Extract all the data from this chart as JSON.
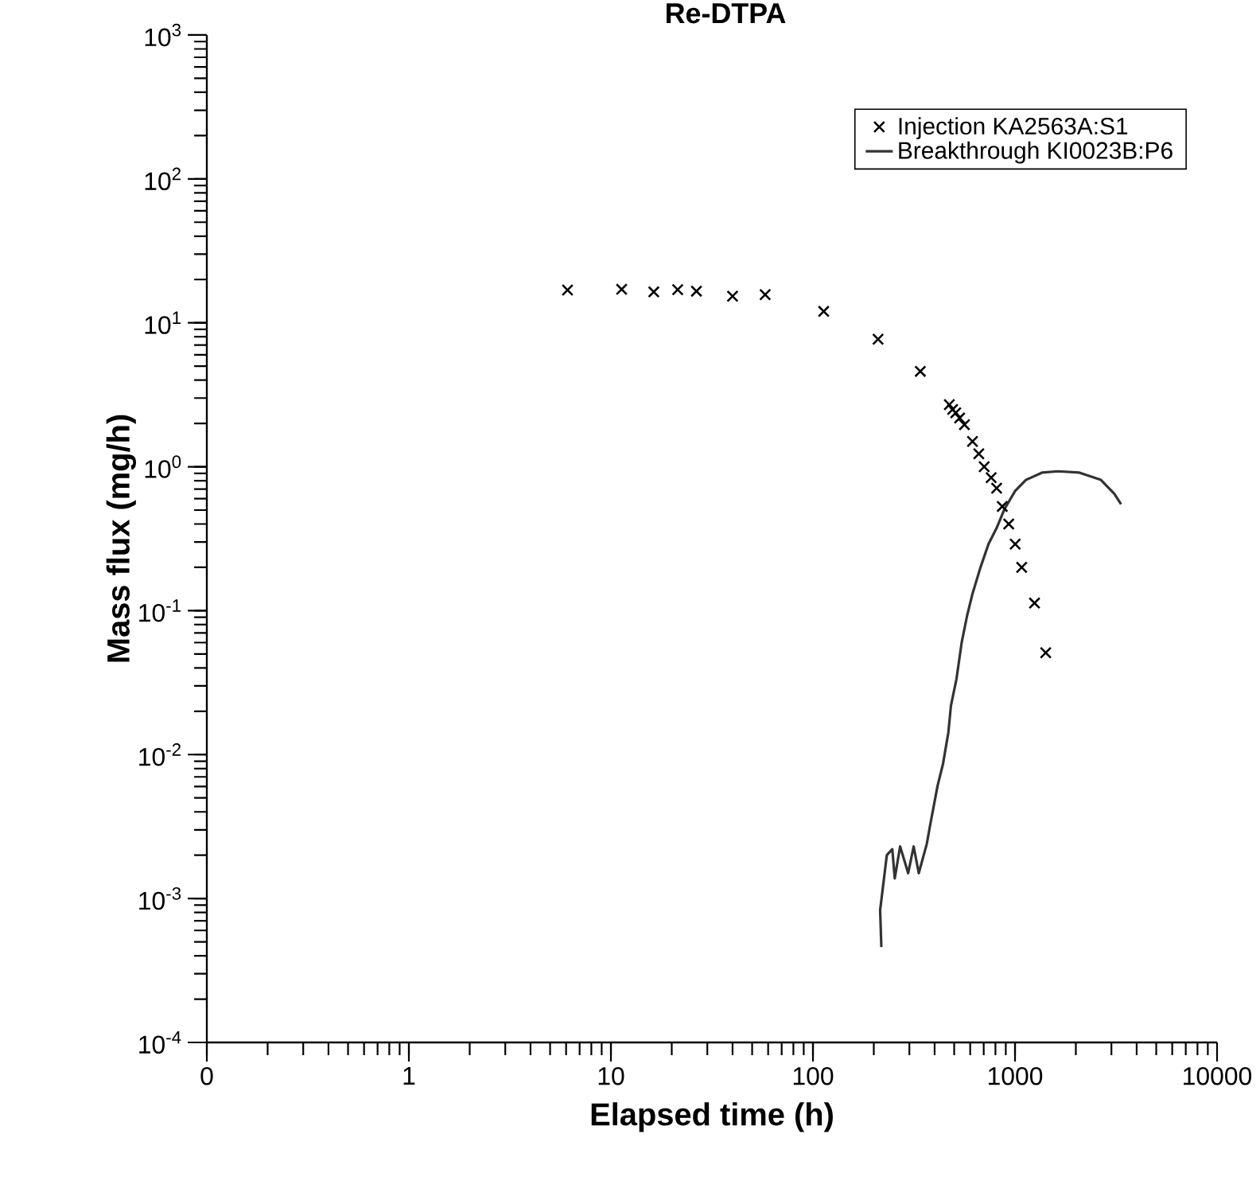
{
  "chart_data": {
    "type": "scatter",
    "title": "Re-DTPA",
    "xlabel": "Elapsed time (h)",
    "ylabel": "Mass flux (mg/h)",
    "log": "xy",
    "xlim": [
      0.1,
      10000
    ],
    "ylim": [
      0.0001,
      1000
    ],
    "xticks": [
      {
        "value": 0.1,
        "label": "0"
      },
      1,
      10,
      100,
      1000,
      10000
    ],
    "yticks": [
      {
        "value": 0.0001,
        "label": "10$^{-4}$"
      },
      {
        "value": 0.001,
        "label": "10$^{-3}$"
      },
      {
        "value": 0.01,
        "label": "10$^{-2}$"
      },
      {
        "value": 0.1,
        "label": "10$^{-1}$"
      },
      {
        "value": 1,
        "label": "10$^{0}$"
      },
      {
        "value": 10,
        "label": "10$^{1}$"
      },
      {
        "value": 100,
        "label": "10$^{2}$"
      },
      {
        "value": 1000,
        "label": "10$^{3}$"
      }
    ],
    "grid": false,
    "legend": "top right",
    "series": [
      {
        "name": "Injection KA2563A:S1",
        "type": "scatter",
        "marker": "cross",
        "color": "#000000",
        "x": [
          6.1,
          11.3,
          16.3,
          21.4,
          26.5,
          40,
          58,
          113,
          210,
          340,
          473,
          491,
          509,
          532,
          562,
          616,
          662,
          704,
          762,
          811,
          865,
          931,
          1002,
          1079,
          1249,
          1419
        ],
        "values": [
          16.9,
          17.1,
          16.4,
          17.0,
          16.6,
          15.3,
          15.7,
          12.0,
          7.7,
          4.6,
          2.7,
          2.5,
          2.37,
          2.18,
          1.96,
          1.5,
          1.23,
          1.0,
          0.84,
          0.71,
          0.53,
          0.4,
          0.29,
          0.2,
          0.113,
          0.051
        ]
      },
      {
        "name": "Breakthrough KI0023B:P6",
        "type": "line",
        "marker": "none",
        "line_style": "solid",
        "color": "#333333",
        "x": [
          218,
          215,
          232,
          247,
          254,
          270,
          296,
          315,
          334,
          366,
          378,
          414,
          440,
          468,
          482,
          513,
          545,
          579,
          615,
          674,
          739,
          811,
          888,
          1002,
          1132,
          1360,
          1634,
          2084,
          2661,
          3098,
          3350
        ],
        "values": [
          0.00046,
          0.00083,
          0.002,
          0.0022,
          0.00138,
          0.0023,
          0.0015,
          0.0023,
          0.0015,
          0.0024,
          0.0031,
          0.0061,
          0.0086,
          0.0143,
          0.0219,
          0.0334,
          0.0605,
          0.092,
          0.13,
          0.199,
          0.29,
          0.375,
          0.51,
          0.68,
          0.81,
          0.91,
          0.93,
          0.91,
          0.81,
          0.65,
          0.55
        ]
      }
    ]
  }
}
